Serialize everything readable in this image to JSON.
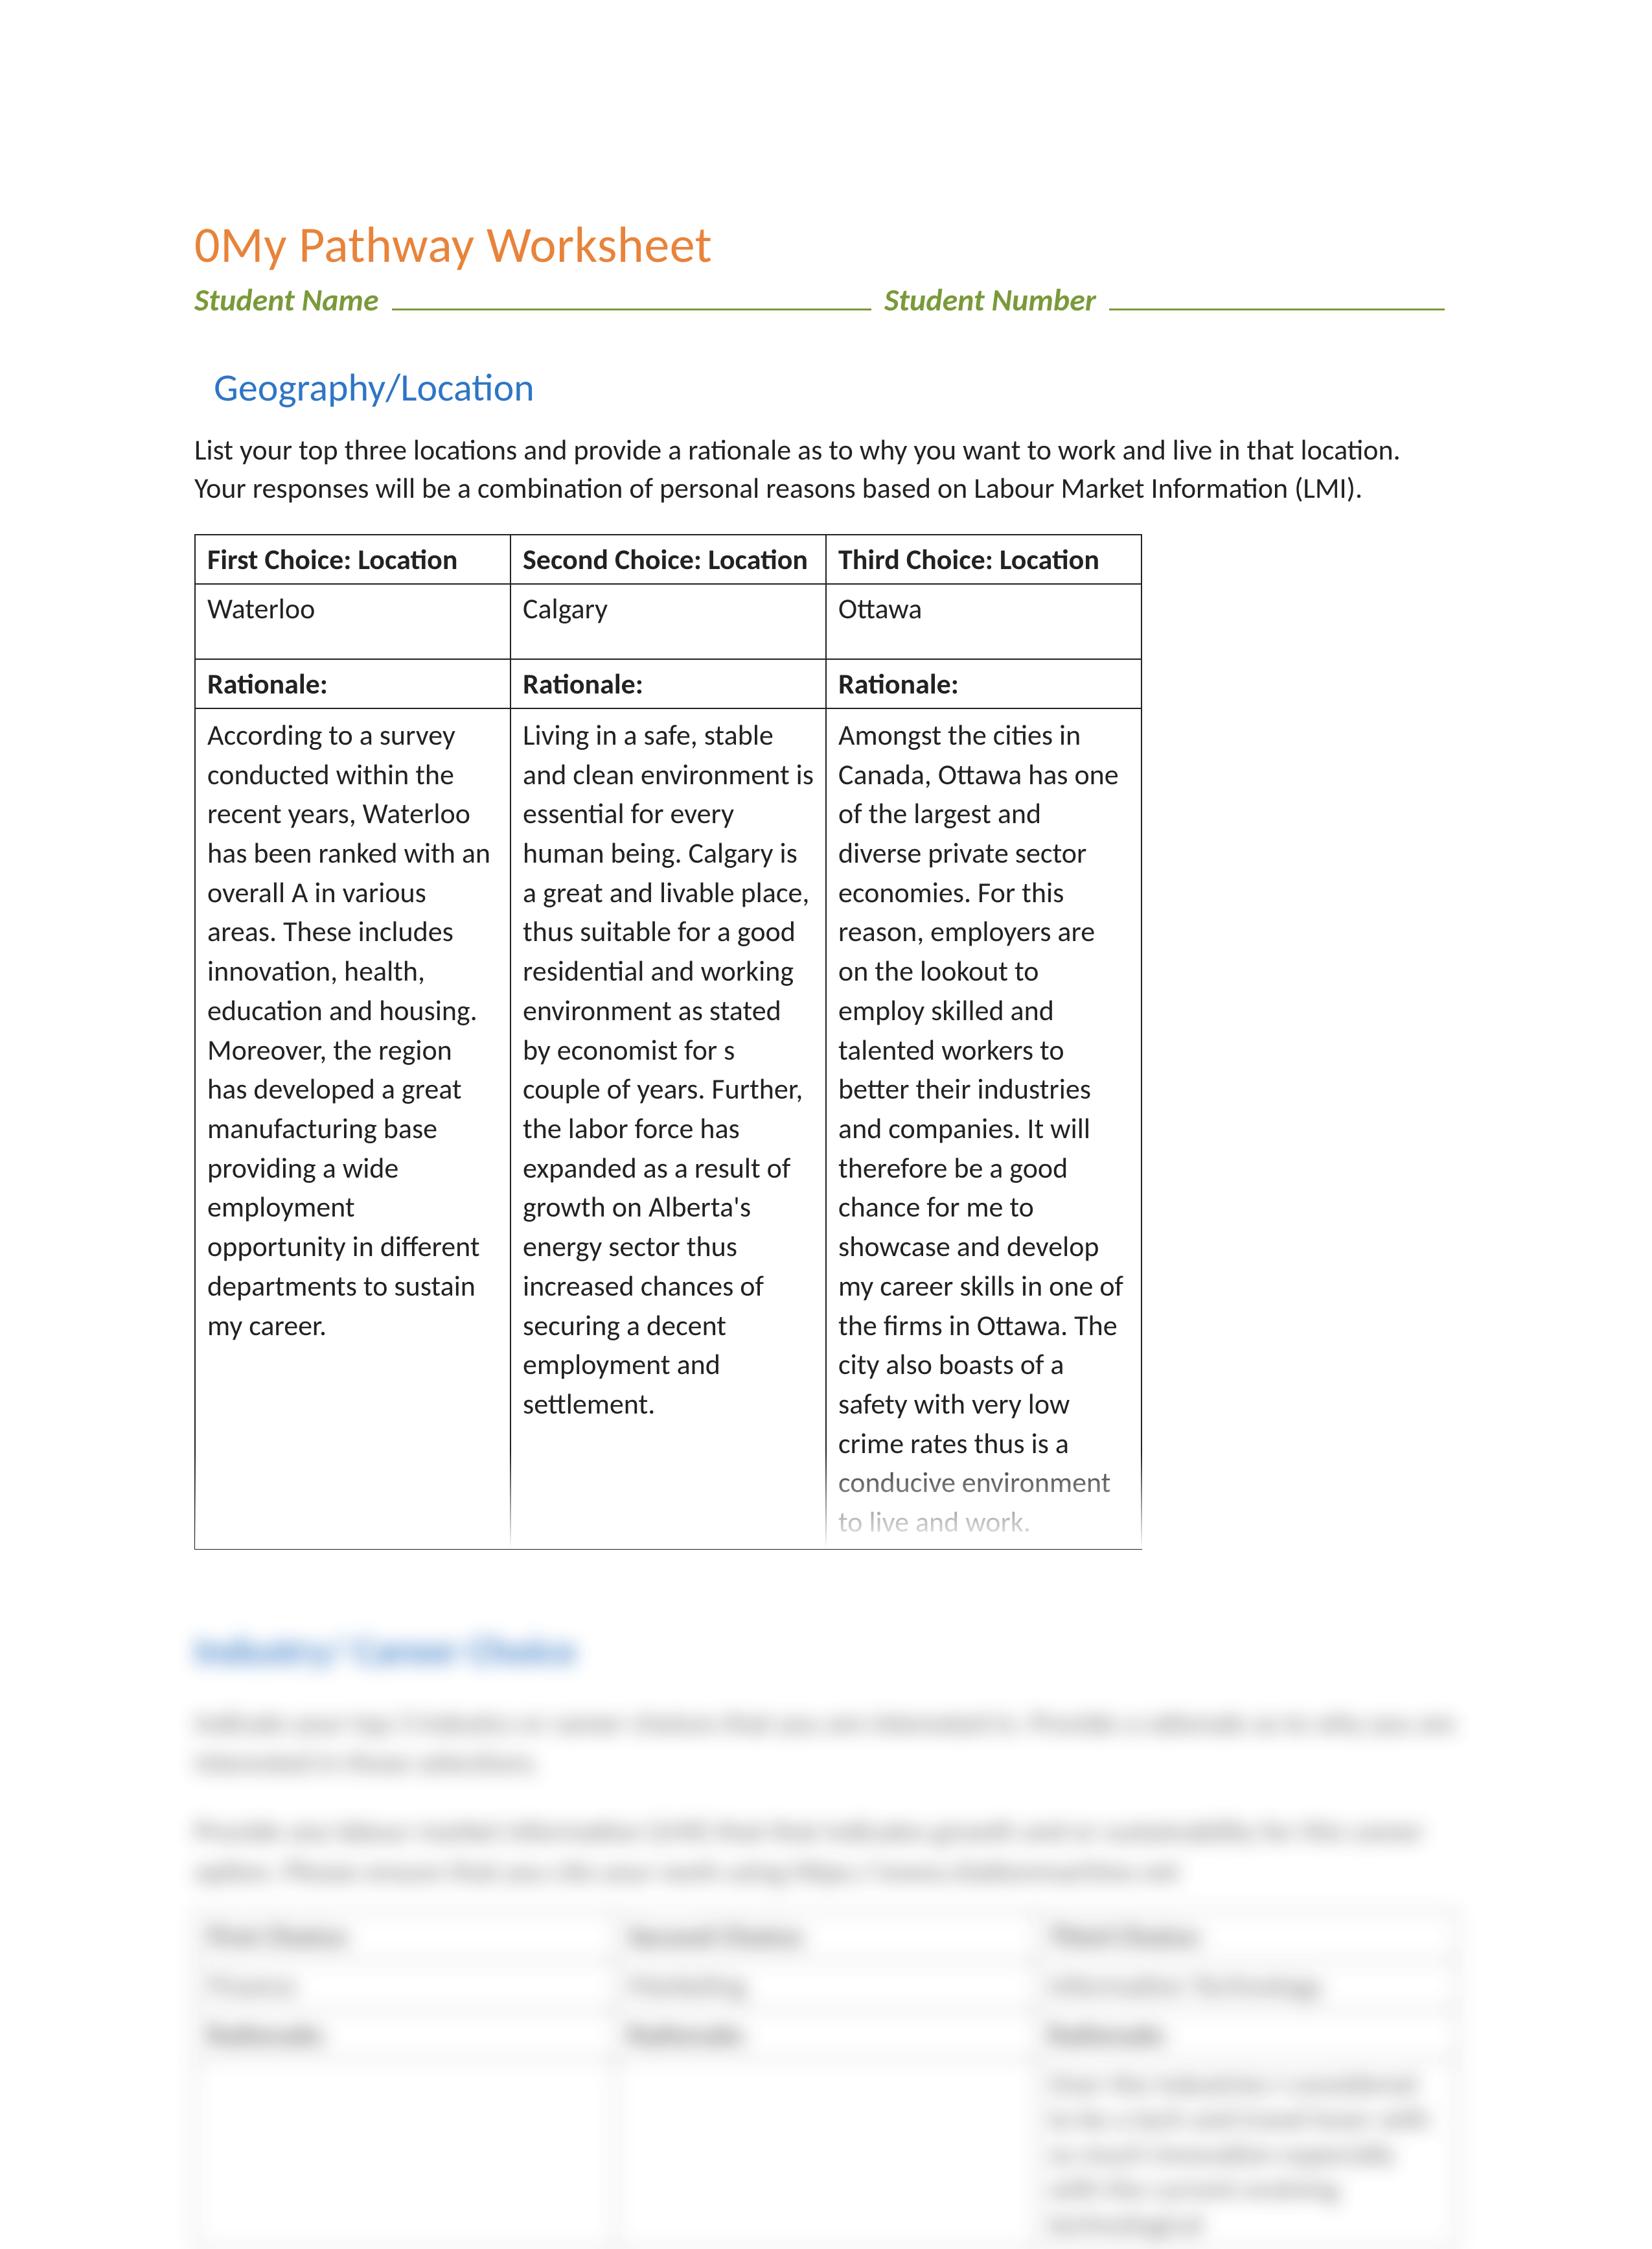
{
  "colors": {
    "title": "#e8833a",
    "subtitle": "#7a9a3a",
    "heading": "#2f75c5",
    "text": "#222222",
    "border": "#222222",
    "blurred_text": "#555555",
    "blurred_border": "#888888",
    "background": "#ffffff"
  },
  "title": "0My Pathway Worksheet",
  "subtitle": {
    "name_label": "Student Name",
    "number_label": "Student Number"
  },
  "section1": {
    "heading": "Geography/Location",
    "intro": "List your top three locations and provide a rationale as to why you want to work and live in that location. Your responses will be a combination of personal reasons based on Labour Market Information (LMI).",
    "headers": {
      "first": "First Choice: Location",
      "second": "Second Choice: Location",
      "third": "Third Choice: Location"
    },
    "values": {
      "first": "Waterloo",
      "second": "Calgary",
      "third": "Ottawa"
    },
    "rationale_label": "Rationale:",
    "rationales": {
      "first": "According to a survey conducted within the recent years, Waterloo has been ranked with an overall A in various areas. These includes innovation, health, education and housing. Moreover, the region has developed a great manufacturing base providing a wide employment opportunity in different departments to sustain my career.",
      "second": "Living in a safe, stable and clean environment is essential for every human being. Calgary is a great and livable place, thus suitable for a good residential and working environment as stated by economist for s couple of years. Further, the labor force has expanded as a result of growth on Alberta's energy sector thus increased chances of securing a decent employment and settlement.",
      "third": "Amongst the cities in Canada, Ottawa has one of the largest and diverse private sector economies. For this reason, employers are on the lookout to employ skilled and talented workers to better their industries and companies. It will therefore be a good chance for me to showcase and develop my career skills in one of the firms in Ottawa. The city also boasts of a safety with very low crime rates thus is a conducive environment to live and work."
    }
  },
  "section2_blurred": {
    "heading": "Industry/ Career Choice",
    "intro1": "Indicate your top 3 industry or career choices that you are interested in. Provide a rationale as to why you are interested in those selections.",
    "intro2": "Provide any labour market information (LMI) that that indicates growth and or sustainability for this career option. Please ensure that you cite your work using https://www.citationmachine.net",
    "headers": {
      "first": "First Choice:",
      "second": "Second Choice:",
      "third": "Third Choice:"
    },
    "values": {
      "first": "Finance",
      "second": "Marketing",
      "third": "Information Technology"
    },
    "rationale_label": "Rationale:",
    "rationales": {
      "third": "Over the industries I considered to be a tech and travel lover with so much innovation especially with the current evolving technological"
    }
  }
}
